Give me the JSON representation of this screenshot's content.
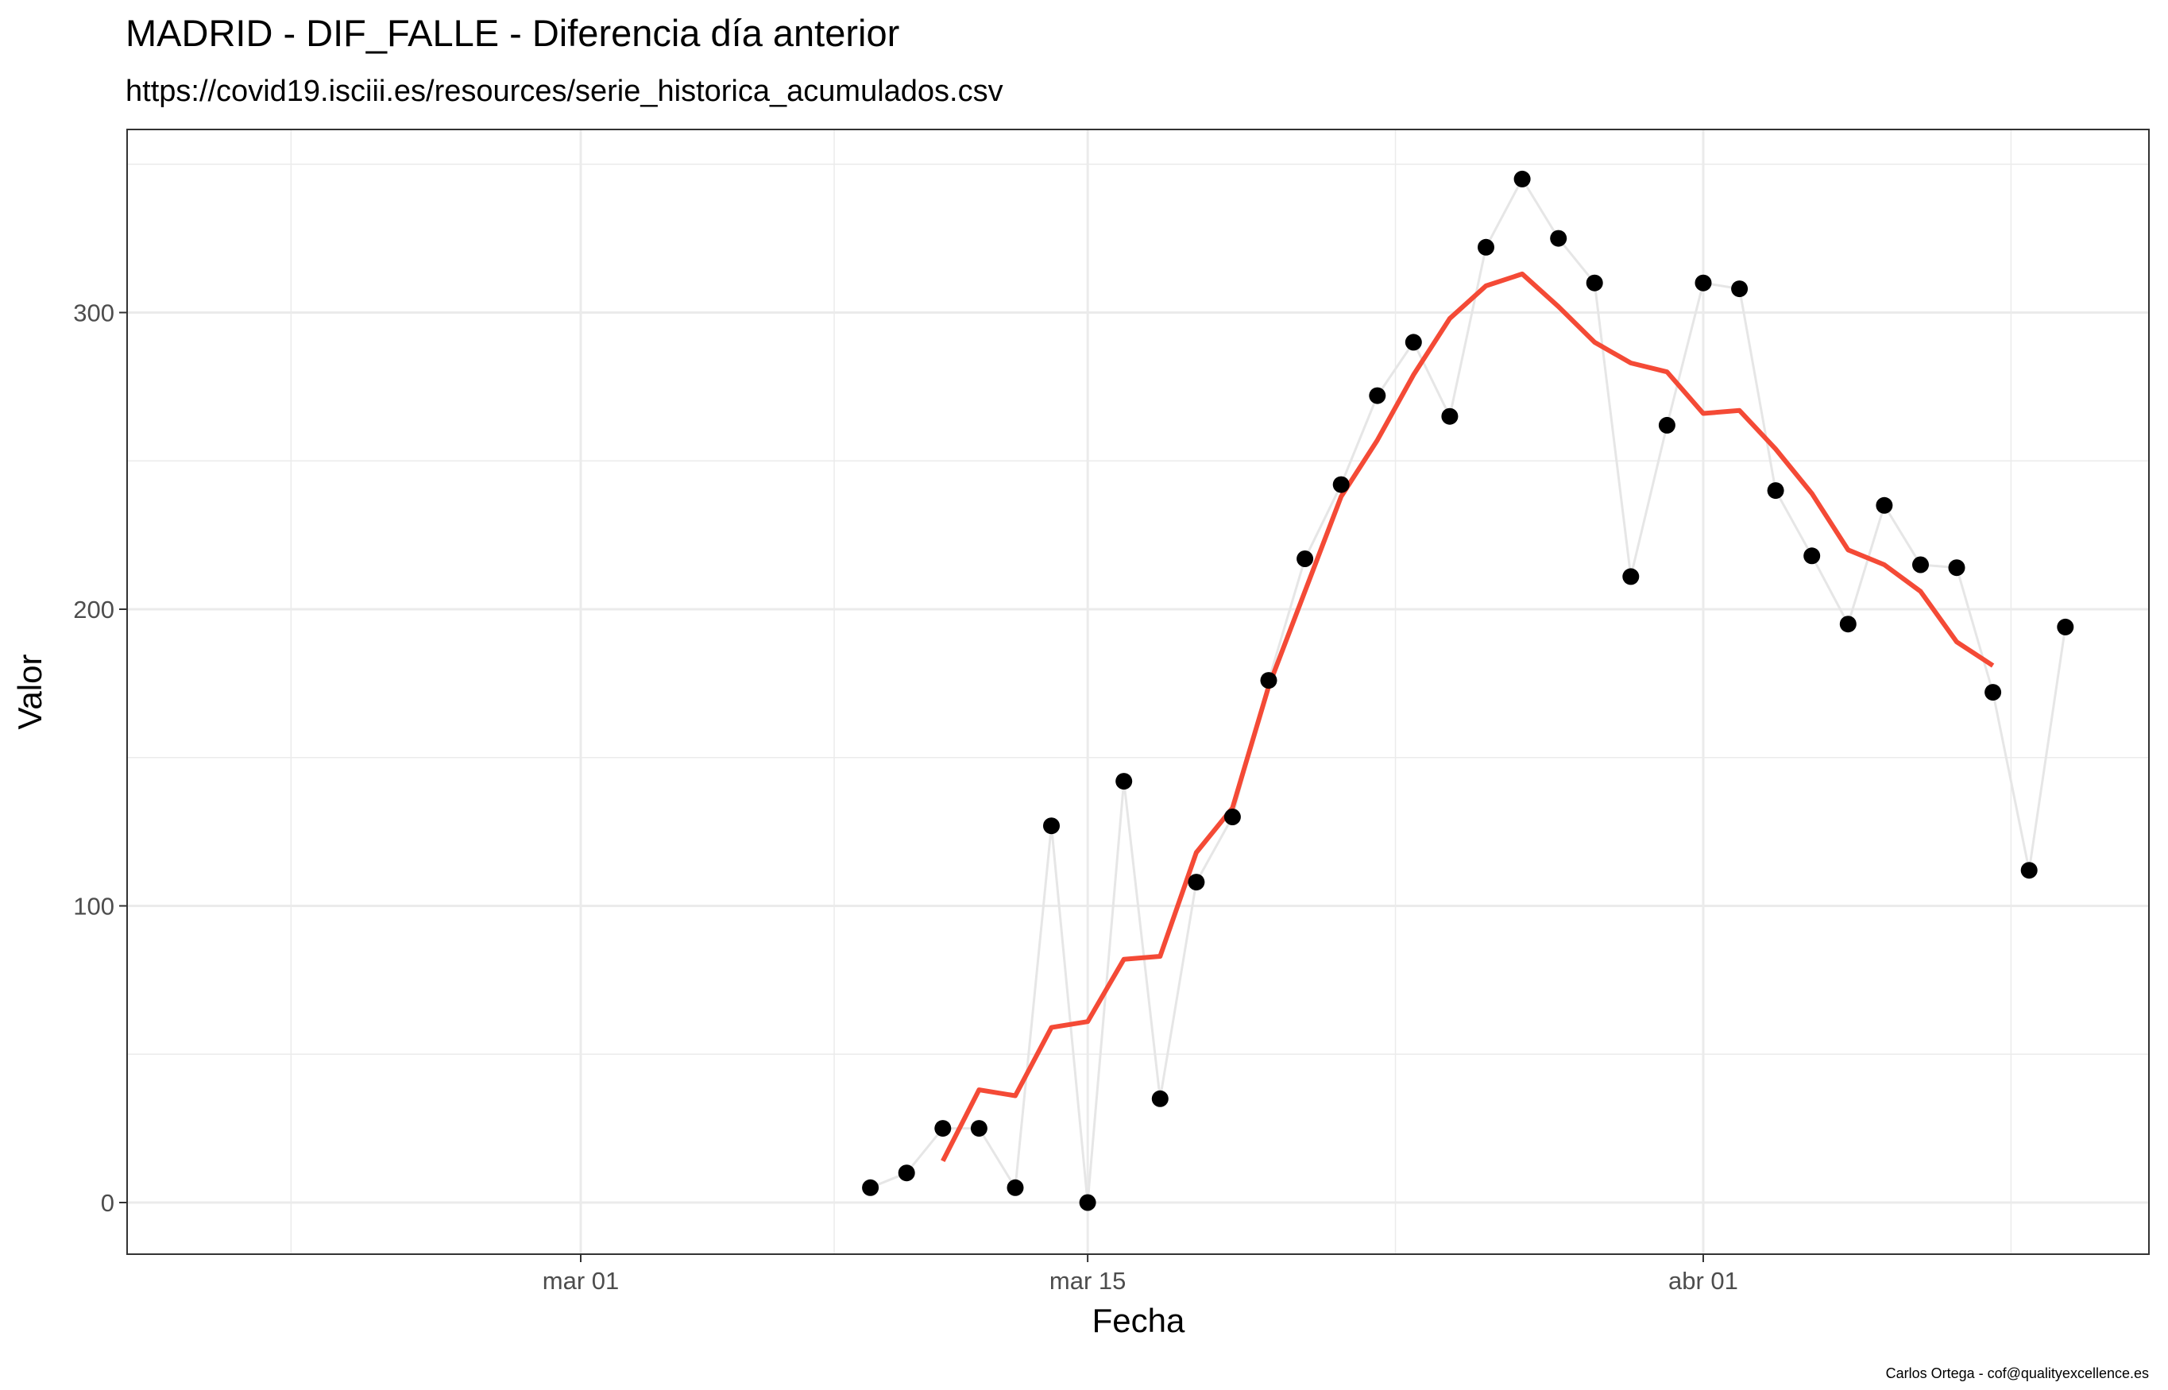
{
  "chart_data": {
    "type": "line",
    "title": "MADRID - DIF_FALLE - Diferencia día anterior",
    "subtitle": "https://covid19.isciii.es/resources/serie_historica_acumulados.csv",
    "xlabel": "Fecha",
    "ylabel": "Valor",
    "caption": "Carlos Ortega - cof@qualityexcellence.es",
    "x_tick_labels": [
      "mar 01",
      "mar 15",
      "abr 01"
    ],
    "y_tick_labels": [
      "0",
      "100",
      "200",
      "300"
    ],
    "y_ticks": [
      0,
      100,
      200,
      300
    ],
    "ylim": [
      -17,
      352
    ],
    "xlim": [
      "2020-02-19",
      "2020-04-14"
    ],
    "grid": true,
    "colors": {
      "points": "#000000",
      "daily_line": "#ebebeb",
      "moving_average": "#f44a36",
      "grid": "#ebebeb",
      "panel_border": "#333333"
    },
    "series": [
      {
        "kind": "points-with-thin-line",
        "x": [
          "2020-03-09",
          "2020-03-10",
          "2020-03-11",
          "2020-03-12",
          "2020-03-13",
          "2020-03-14",
          "2020-03-15",
          "2020-03-16",
          "2020-03-17",
          "2020-03-18",
          "2020-03-19",
          "2020-03-20",
          "2020-03-21",
          "2020-03-22",
          "2020-03-23",
          "2020-03-24",
          "2020-03-25",
          "2020-03-26",
          "2020-03-27",
          "2020-03-28",
          "2020-03-29",
          "2020-03-30",
          "2020-03-31",
          "2020-04-01",
          "2020-04-02",
          "2020-04-03",
          "2020-04-04",
          "2020-04-05",
          "2020-04-06",
          "2020-04-07",
          "2020-04-08",
          "2020-04-09",
          "2020-04-10",
          "2020-04-11"
        ],
        "values": [
          5,
          10,
          25,
          25,
          5,
          127,
          0,
          142,
          35,
          108,
          130,
          176,
          217,
          242,
          272,
          290,
          265,
          322,
          345,
          325,
          310,
          211,
          262,
          310,
          308,
          240,
          218,
          195,
          235,
          215,
          214,
          172,
          112,
          194
        ]
      },
      {
        "kind": "moving-average",
        "x": [
          "2020-03-11",
          "2020-03-12",
          "2020-03-13",
          "2020-03-14",
          "2020-03-15",
          "2020-03-16",
          "2020-03-17",
          "2020-03-18",
          "2020-03-19",
          "2020-03-20",
          "2020-03-21",
          "2020-03-22",
          "2020-03-23",
          "2020-03-24",
          "2020-03-25",
          "2020-03-26",
          "2020-03-27",
          "2020-03-28",
          "2020-03-29",
          "2020-03-30",
          "2020-03-31",
          "2020-04-01",
          "2020-04-02",
          "2020-04-03",
          "2020-04-04",
          "2020-04-05",
          "2020-04-06",
          "2020-04-07",
          "2020-04-08",
          "2020-04-09"
        ],
        "values": [
          14,
          38,
          36,
          59,
          61,
          82,
          83,
          118,
          133,
          174,
          206,
          238,
          257,
          279,
          298,
          309,
          313,
          302,
          290,
          283,
          280,
          266,
          267,
          254,
          239,
          220,
          215,
          206,
          189,
          181
        ]
      }
    ]
  }
}
